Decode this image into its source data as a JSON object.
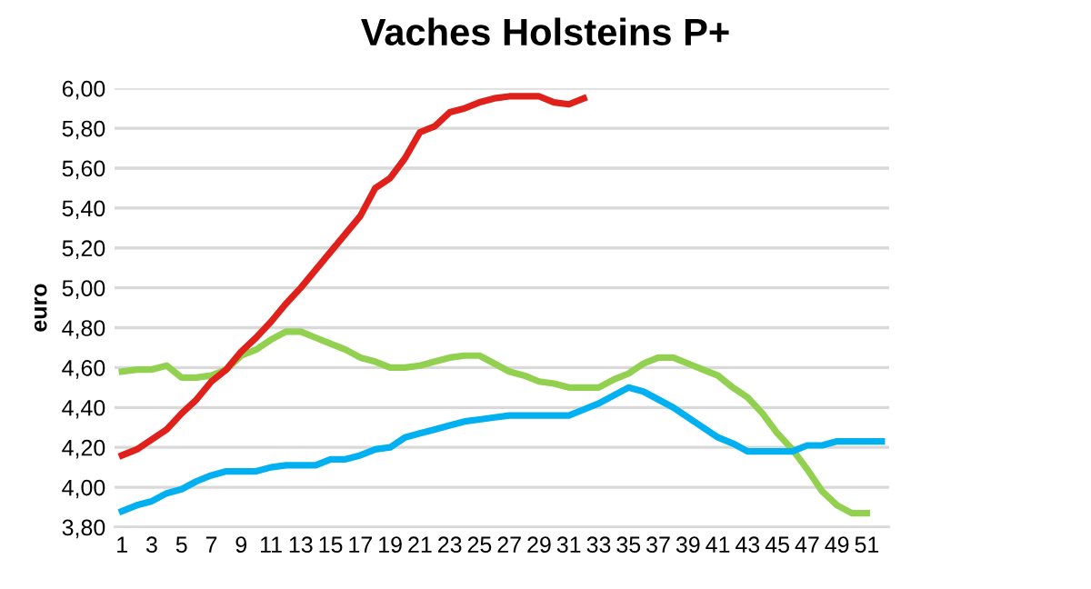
{
  "chart_data": {
    "type": "line",
    "title": "Vaches Holsteins P+",
    "ylabel": "euro",
    "categories": [
      "1",
      null,
      "3",
      null,
      "5",
      null,
      "7",
      null,
      "9",
      null,
      "11",
      null,
      "13",
      null,
      "15",
      null,
      "17",
      null,
      "19",
      null,
      "21",
      null,
      "23",
      null,
      "25",
      null,
      "27",
      null,
      "29",
      null,
      "31",
      null,
      "33",
      null,
      "35",
      null,
      "37",
      null,
      "39",
      null,
      "41",
      null,
      "43",
      null,
      "45",
      null,
      "47",
      null,
      "49",
      null,
      "51",
      null
    ],
    "ylim": [
      3.8,
      6.0
    ],
    "yticks": [
      {
        "value": 3.8,
        "label": "3,80"
      },
      {
        "value": 4.0,
        "label": "4,00"
      },
      {
        "value": 4.2,
        "label": "4,20"
      },
      {
        "value": 4.4,
        "label": "4,40"
      },
      {
        "value": 4.6,
        "label": "4,60"
      },
      {
        "value": 4.8,
        "label": "4,80"
      },
      {
        "value": 5.0,
        "label": "5,00"
      },
      {
        "value": 5.2,
        "label": "5,20"
      },
      {
        "value": 5.4,
        "label": "5,40"
      },
      {
        "value": 5.6,
        "label": "5,60"
      },
      {
        "value": 5.8,
        "label": "5,80"
      },
      {
        "value": 6.0,
        "label": "6,00"
      }
    ],
    "grid": "y",
    "marker": "none",
    "line_style": "solid",
    "series": [
      {
        "color": "#92d050",
        "values": [
          4.58,
          4.59,
          4.59,
          4.61,
          4.55,
          4.55,
          4.56,
          4.59,
          4.66,
          4.69,
          4.74,
          4.78,
          4.78,
          4.75,
          4.72,
          4.69,
          4.65,
          4.63,
          4.6,
          4.6,
          4.61,
          4.63,
          4.65,
          4.66,
          4.66,
          4.62,
          4.58,
          4.56,
          4.53,
          4.52,
          4.5,
          4.5,
          4.5,
          4.54,
          4.57,
          4.62,
          4.65,
          4.65,
          4.62,
          4.59,
          4.56,
          4.5,
          4.45,
          4.37,
          4.27,
          4.19,
          4.09,
          3.98,
          3.91,
          3.87,
          3.87,
          null
        ]
      },
      {
        "color": "#00b0f0",
        "values": [
          3.88,
          3.91,
          3.93,
          3.97,
          3.99,
          4.03,
          4.06,
          4.08,
          4.08,
          4.08,
          4.1,
          4.11,
          4.11,
          4.11,
          4.14,
          4.14,
          4.16,
          4.19,
          4.2,
          4.25,
          4.27,
          4.29,
          4.31,
          4.33,
          4.34,
          4.35,
          4.36,
          4.36,
          4.36,
          4.36,
          4.36,
          4.39,
          4.42,
          4.46,
          4.5,
          4.48,
          4.44,
          4.4,
          4.35,
          4.3,
          4.25,
          4.22,
          4.18,
          4.18,
          4.18,
          4.18,
          4.21,
          4.21,
          4.23,
          4.23,
          4.23,
          4.23
        ]
      },
      {
        "color": "#e0201b",
        "values": [
          4.16,
          4.19,
          4.24,
          4.29,
          4.37,
          4.44,
          4.53,
          4.59,
          4.68,
          4.75,
          4.83,
          4.92,
          5.0,
          5.09,
          5.18,
          5.27,
          5.36,
          5.5,
          5.55,
          5.65,
          5.78,
          5.81,
          5.88,
          5.9,
          5.93,
          5.95,
          5.96,
          5.96,
          5.96,
          5.93,
          5.92,
          5.95,
          null,
          null,
          null,
          null,
          null,
          null,
          null,
          null,
          null,
          null,
          null,
          null,
          null,
          null,
          null,
          null,
          null,
          null,
          null,
          null
        ]
      }
    ]
  }
}
